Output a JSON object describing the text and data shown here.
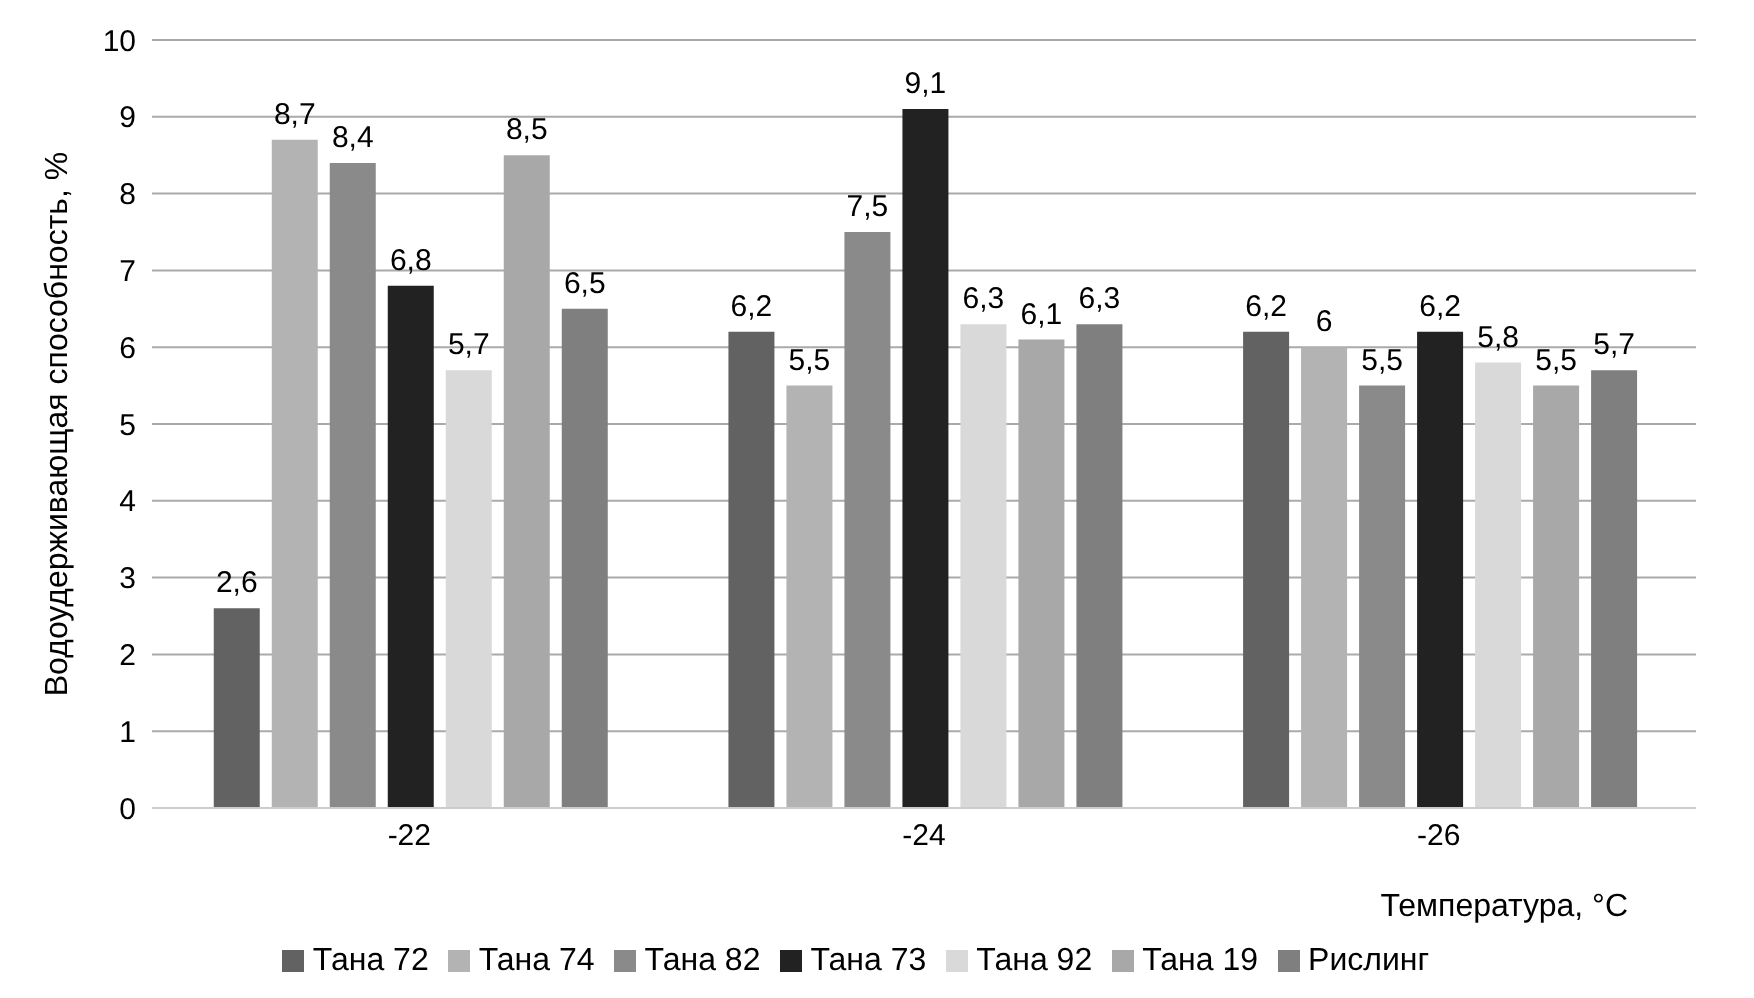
{
  "chart_data": {
    "type": "bar",
    "xlabel": "Температура, °C",
    "ylabel": "Водоудерживающая способность, %",
    "categories": [
      "-22",
      "-24",
      "-26"
    ],
    "series": [
      {
        "name": "Тана 72",
        "color": "#626262",
        "values": [
          2.6,
          6.2,
          6.2
        ],
        "value_labels": [
          "2,6",
          "6,2",
          "6,2"
        ]
      },
      {
        "name": "Тана 74",
        "color": "#b3b3b3",
        "values": [
          8.7,
          5.5,
          6
        ],
        "value_labels": [
          "8,7",
          "5,5",
          "6"
        ]
      },
      {
        "name": "Тана 82",
        "color": "#8a8a8a",
        "values": [
          8.4,
          7.5,
          5.5
        ],
        "value_labels": [
          "8,4",
          "7,5",
          "5,5"
        ]
      },
      {
        "name": "Тана 73",
        "color": "#222222",
        "values": [
          6.8,
          9.1,
          6.2
        ],
        "value_labels": [
          "6,8",
          "9,1",
          "6,2"
        ]
      },
      {
        "name": "Тана 92",
        "color": "#d9d9d9",
        "values": [
          5.7,
          6.3,
          5.8
        ],
        "value_labels": [
          "5,7",
          "6,3",
          "5,8"
        ]
      },
      {
        "name": "Тана 19",
        "color": "#a8a8a8",
        "values": [
          8.5,
          6.1,
          5.5
        ],
        "value_labels": [
          "8,5",
          "6,1",
          "5,5"
        ]
      },
      {
        "name": "Рислинг",
        "color": "#7f7f7f",
        "values": [
          6.5,
          6.3,
          5.7
        ],
        "value_labels": [
          "6,5",
          "6,3",
          "5,7"
        ]
      }
    ],
    "ylim": [
      0,
      10
    ],
    "yticks": [
      0,
      1,
      2,
      3,
      4,
      5,
      6,
      7,
      8,
      9,
      10
    ],
    "grid": "y",
    "legend": "bottom"
  }
}
